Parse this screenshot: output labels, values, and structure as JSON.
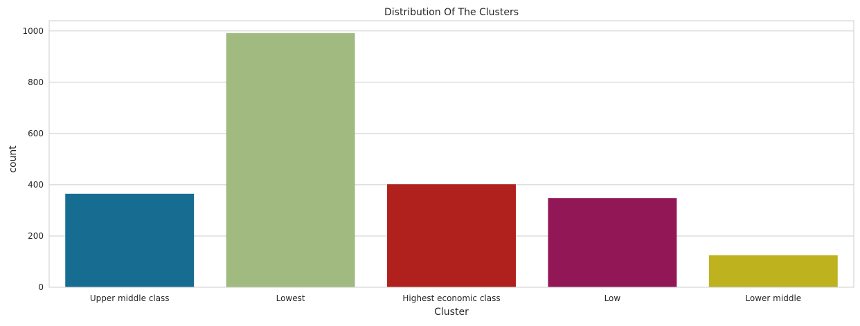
{
  "chart_data": {
    "type": "bar",
    "title": "Distribution Of The Clusters",
    "xlabel": "Cluster",
    "ylabel": "count",
    "categories": [
      "Upper middle class",
      "Lowest",
      "Highest economic class",
      "Low",
      "Lower middle"
    ],
    "values": [
      365,
      992,
      402,
      348,
      125
    ],
    "colors": [
      "#176c91",
      "#a0ba80",
      "#b0201c",
      "#911757",
      "#bfb21f"
    ],
    "ylim": [
      0,
      1040
    ],
    "yticks": [
      0,
      200,
      400,
      600,
      800,
      1000
    ],
    "grid": true,
    "legend": "none"
  }
}
